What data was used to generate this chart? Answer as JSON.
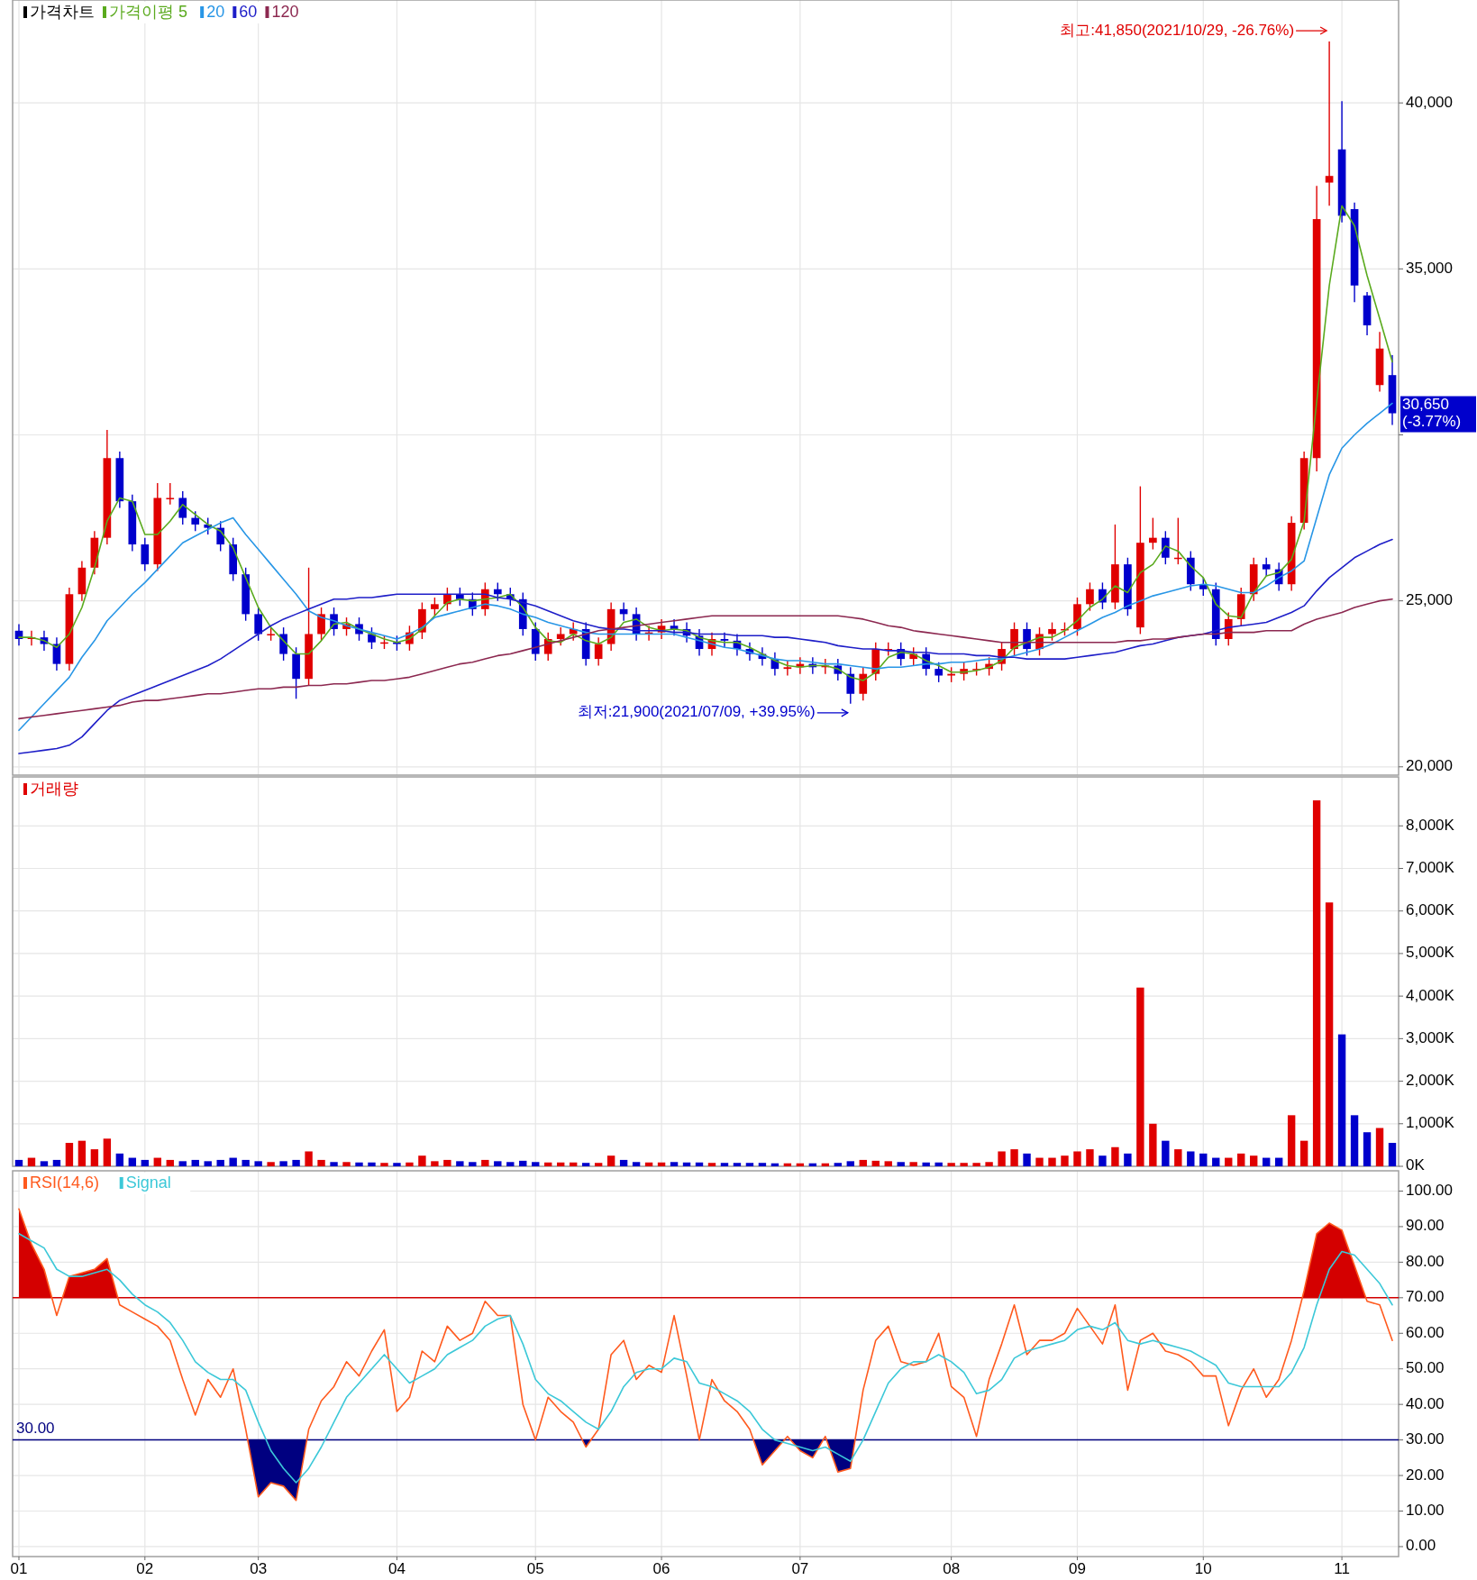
{
  "chart_data": [
    {
      "type": "candlestick",
      "title": "가격차트",
      "categories": [
        "01",
        null,
        null,
        null,
        null,
        null,
        null,
        null,
        null,
        null,
        "02",
        null,
        null,
        null,
        null,
        null,
        null,
        null,
        null,
        "03",
        null,
        null,
        null,
        null,
        null,
        null,
        null,
        null,
        null,
        null,
        "04",
        null,
        null,
        null,
        null,
        null,
        null,
        null,
        null,
        null,
        null,
        "05",
        null,
        null,
        null,
        null,
        null,
        null,
        null,
        null,
        null,
        "06",
        null,
        null,
        null,
        null,
        null,
        null,
        null,
        null,
        null,
        null,
        "07",
        null,
        null,
        null,
        null,
        null,
        null,
        null,
        null,
        null,
        null,
        null,
        "08",
        null,
        null,
        null,
        null,
        null,
        null,
        null,
        null,
        null,
        "09",
        null,
        null,
        null,
        null,
        null,
        null,
        null,
        null,
        null,
        "10",
        null,
        null,
        null,
        null,
        null,
        null,
        null,
        null,
        null,
        null,
        "11",
        null,
        null,
        null,
        null
      ],
      "ohlc": [
        [
          24100,
          24300,
          23650,
          23850
        ],
        [
          23850,
          24100,
          23650,
          23900
        ],
        [
          23900,
          24100,
          23500,
          23700
        ],
        [
          23700,
          23900,
          22900,
          23100
        ],
        [
          23100,
          25400,
          22900,
          25200
        ],
        [
          25200,
          26200,
          25000,
          26000
        ],
        [
          26000,
          27100,
          25800,
          26900
        ],
        [
          26900,
          30150,
          26700,
          29300
        ],
        [
          29300,
          29500,
          27800,
          28000
        ],
        [
          28000,
          28200,
          26500,
          26700
        ],
        [
          26700,
          26900,
          25900,
          26100
        ],
        [
          26100,
          28550,
          25900,
          28100
        ],
        [
          28100,
          28550,
          27900,
          28100
        ],
        [
          28100,
          28300,
          27300,
          27500
        ],
        [
          27500,
          27700,
          27100,
          27300
        ],
        [
          27300,
          27500,
          27000,
          27200
        ],
        [
          27200,
          27400,
          26500,
          26700
        ],
        [
          26700,
          26900,
          25600,
          25800
        ],
        [
          25800,
          26000,
          24400,
          24600
        ],
        [
          24600,
          24800,
          23800,
          24000
        ],
        [
          24000,
          24200,
          23800,
          24000
        ],
        [
          24000,
          24200,
          23200,
          23400
        ],
        [
          23400,
          23600,
          22050,
          22650
        ],
        [
          22650,
          26000,
          22450,
          24000
        ],
        [
          24000,
          24800,
          23800,
          24600
        ],
        [
          24600,
          24800,
          23950,
          24150
        ],
        [
          24150,
          24500,
          23950,
          24300
        ],
        [
          24300,
          24500,
          23800,
          24000
        ],
        [
          24000,
          24200,
          23550,
          23750
        ],
        [
          23750,
          23950,
          23550,
          23750
        ],
        [
          23750,
          23950,
          23500,
          23700
        ],
        [
          23700,
          24250,
          23500,
          24050
        ],
        [
          24050,
          24950,
          23850,
          24750
        ],
        [
          24750,
          25100,
          24550,
          24900
        ],
        [
          24900,
          25400,
          24700,
          25200
        ],
        [
          25200,
          25400,
          24850,
          25050
        ],
        [
          25050,
          25250,
          24550,
          24750
        ],
        [
          24750,
          25550,
          24550,
          25350
        ],
        [
          25350,
          25550,
          25000,
          25200
        ],
        [
          25200,
          25400,
          24850,
          25050
        ],
        [
          25050,
          25250,
          23950,
          24150
        ],
        [
          24150,
          24350,
          23200,
          23400
        ],
        [
          23400,
          24050,
          23200,
          23850
        ],
        [
          23850,
          24200,
          23650,
          24000
        ],
        [
          24000,
          24350,
          23800,
          24150
        ],
        [
          24150,
          24350,
          23050,
          23250
        ],
        [
          23250,
          23900,
          23050,
          23700
        ],
        [
          23700,
          24950,
          23500,
          24750
        ],
        [
          24750,
          24950,
          24400,
          24600
        ],
        [
          24600,
          24800,
          23800,
          24000
        ],
        [
          24000,
          24250,
          23800,
          24050
        ],
        [
          24050,
          24450,
          23850,
          24250
        ],
        [
          24250,
          24450,
          23950,
          24150
        ],
        [
          24150,
          24350,
          23750,
          23950
        ],
        [
          23950,
          24150,
          23350,
          23550
        ],
        [
          23550,
          24050,
          23350,
          23850
        ],
        [
          23850,
          24050,
          23600,
          23800
        ],
        [
          23800,
          24000,
          23350,
          23550
        ],
        [
          23550,
          23750,
          23200,
          23400
        ],
        [
          23400,
          23600,
          23050,
          23250
        ],
        [
          23250,
          23450,
          22750,
          22950
        ],
        [
          22950,
          23200,
          22750,
          23000
        ],
        [
          23000,
          23300,
          22800,
          23100
        ],
        [
          23100,
          23300,
          22800,
          23000
        ],
        [
          23000,
          23250,
          22800,
          23050
        ],
        [
          23050,
          23250,
          22600,
          22800
        ],
        [
          22800,
          23000,
          21900,
          22200
        ],
        [
          22200,
          23000,
          22000,
          22800
        ],
        [
          22800,
          23750,
          22600,
          23550
        ],
        [
          23550,
          23750,
          23350,
          23550
        ],
        [
          23550,
          23750,
          23050,
          23250
        ],
        [
          23250,
          23600,
          23050,
          23400
        ],
        [
          23400,
          23600,
          22750,
          22950
        ],
        [
          22950,
          23150,
          22550,
          22750
        ],
        [
          22750,
          23000,
          22550,
          22800
        ],
        [
          22800,
          23150,
          22600,
          22950
        ],
        [
          22950,
          23150,
          22750,
          22950
        ],
        [
          22950,
          23300,
          22750,
          23100
        ],
        [
          23100,
          23750,
          22900,
          23550
        ],
        [
          23550,
          24350,
          23350,
          24150
        ],
        [
          24150,
          24350,
          23350,
          23550
        ],
        [
          23550,
          24200,
          23350,
          24000
        ],
        [
          24000,
          24350,
          23800,
          24150
        ],
        [
          24150,
          24350,
          23950,
          24150
        ],
        [
          24150,
          25100,
          23950,
          24900
        ],
        [
          24900,
          25550,
          24700,
          25350
        ],
        [
          25350,
          25550,
          24750,
          24950
        ],
        [
          24950,
          27300,
          24750,
          26100
        ],
        [
          26100,
          26300,
          24550,
          24750
        ],
        [
          24200,
          28450,
          24000,
          26750
        ],
        [
          26750,
          27500,
          26550,
          26900
        ],
        [
          26900,
          27100,
          26100,
          26300
        ],
        [
          26300,
          27500,
          26100,
          26300
        ],
        [
          26300,
          26500,
          25300,
          25500
        ],
        [
          25500,
          25700,
          25150,
          25350
        ],
        [
          25350,
          25550,
          23650,
          23850
        ],
        [
          23850,
          24650,
          23650,
          24450
        ],
        [
          24450,
          25400,
          24250,
          25200
        ],
        [
          25200,
          26300,
          25000,
          26100
        ],
        [
          26100,
          26300,
          25750,
          25950
        ],
        [
          25950,
          26150,
          25300,
          25500
        ],
        [
          25500,
          27550,
          25300,
          27350
        ],
        [
          27350,
          29500,
          27150,
          29300
        ],
        [
          29300,
          37500,
          28900,
          36500
        ],
        [
          37600,
          41850,
          36900,
          37800
        ],
        [
          38600,
          40050,
          36400,
          36600
        ],
        [
          36800,
          37000,
          34000,
          34500
        ],
        [
          34200,
          34300,
          33000,
          33300
        ],
        [
          31500,
          33100,
          31300,
          32600
        ],
        [
          31800,
          32400,
          30300,
          30650
        ]
      ],
      "series": [
        {
          "name": "가격이평 5",
          "type": "line",
          "color": "#5aaa1e",
          "values": [
            23900,
            23900,
            23800,
            23600,
            24000,
            24800,
            26000,
            27400,
            28100,
            28000,
            27000,
            27000,
            27400,
            27900,
            27600,
            27300,
            27100,
            26600,
            25700,
            24800,
            24200,
            23800,
            23400,
            23400,
            23800,
            24300,
            24350,
            24150,
            24000,
            23850,
            23750,
            23850,
            24150,
            24550,
            24950,
            25050,
            25000,
            25050,
            25100,
            25200,
            24800,
            24200,
            23800,
            23750,
            24000,
            23800,
            23700,
            23900,
            24350,
            24450,
            24200,
            24100,
            24150,
            24100,
            23900,
            23800,
            23750,
            23750,
            23600,
            23400,
            23200,
            23050,
            23000,
            23050,
            23050,
            22950,
            22700,
            22600,
            22850,
            23300,
            23450,
            23400,
            23200,
            23050,
            22850,
            22850,
            22900,
            23000,
            23200,
            23600,
            23750,
            23900,
            23900,
            24100,
            24400,
            24800,
            25050,
            25450,
            25250,
            25850,
            26100,
            26650,
            26500,
            26050,
            25700,
            24900,
            24550,
            24500,
            25250,
            25750,
            25850,
            26250,
            27400,
            31000,
            34500,
            36900,
            36300,
            34800,
            33500,
            32200
          ]
        },
        {
          "name": "20",
          "type": "line",
          "color": "#2896e6",
          "values": [
            21100,
            21500,
            21900,
            22300,
            22700,
            23300,
            23800,
            24400,
            24800,
            25200,
            25550,
            25950,
            26350,
            26750,
            26950,
            27150,
            27350,
            27500,
            27000,
            26550,
            26100,
            25650,
            25200,
            24700,
            24500,
            24400,
            24250,
            24150,
            24050,
            23950,
            23850,
            24000,
            24200,
            24500,
            24600,
            24700,
            24800,
            24900,
            24850,
            24750,
            24600,
            24500,
            24350,
            24250,
            24150,
            24050,
            24000,
            24000,
            24000,
            24000,
            24000,
            24000,
            24000,
            23900,
            23800,
            23700,
            23600,
            23550,
            23450,
            23350,
            23250,
            23200,
            23200,
            23150,
            23100,
            23100,
            23050,
            23000,
            22950,
            23000,
            23000,
            23050,
            23100,
            23100,
            23150,
            23150,
            23200,
            23250,
            23250,
            23350,
            23450,
            23550,
            23700,
            23900,
            24100,
            24300,
            24500,
            24650,
            24850,
            25000,
            25150,
            25250,
            25350,
            25450,
            25500,
            25450,
            25350,
            25250,
            25250,
            25450,
            25700,
            25900,
            26200,
            27500,
            28800,
            29600,
            30000,
            30350,
            30650,
            30950
          ]
        },
        {
          "name": "60",
          "type": "line",
          "color": "#1e1ec8",
          "values": [
            20400,
            20450,
            20500,
            20550,
            20650,
            20900,
            21300,
            21700,
            22000,
            22150,
            22300,
            22450,
            22600,
            22750,
            22900,
            23050,
            23250,
            23500,
            23750,
            24000,
            24250,
            24450,
            24600,
            24750,
            24900,
            25050,
            25050,
            25100,
            25100,
            25150,
            25200,
            25200,
            25200,
            25200,
            25200,
            25200,
            25200,
            25200,
            25100,
            25050,
            24950,
            24850,
            24700,
            24550,
            24400,
            24300,
            24200,
            24150,
            24150,
            24100,
            24100,
            24100,
            24050,
            24050,
            24000,
            24000,
            24000,
            23950,
            23950,
            23950,
            23900,
            23900,
            23850,
            23800,
            23750,
            23650,
            23600,
            23550,
            23550,
            23500,
            23500,
            23450,
            23450,
            23400,
            23400,
            23400,
            23350,
            23350,
            23300,
            23300,
            23250,
            23250,
            23250,
            23250,
            23300,
            23350,
            23400,
            23450,
            23550,
            23650,
            23700,
            23800,
            23900,
            23950,
            24000,
            24100,
            24200,
            24250,
            24300,
            24350,
            24500,
            24650,
            24850,
            25300,
            25700,
            26000,
            26300,
            26500,
            26700,
            26850
          ]
        },
        {
          "name": "120",
          "type": "line",
          "color": "#8c2850",
          "values": [
            21450,
            21500,
            21550,
            21600,
            21650,
            21700,
            21750,
            21800,
            21850,
            21950,
            22000,
            22000,
            22050,
            22100,
            22150,
            22200,
            22200,
            22250,
            22300,
            22350,
            22350,
            22400,
            22400,
            22450,
            22450,
            22500,
            22500,
            22550,
            22600,
            22600,
            22650,
            22700,
            22800,
            22900,
            23000,
            23100,
            23150,
            23250,
            23350,
            23400,
            23500,
            23600,
            23700,
            23800,
            23900,
            24000,
            24100,
            24150,
            24200,
            24250,
            24300,
            24350,
            24400,
            24450,
            24500,
            24550,
            24550,
            24550,
            24550,
            24550,
            24550,
            24550,
            24550,
            24550,
            24550,
            24550,
            24500,
            24450,
            24350,
            24250,
            24200,
            24100,
            24050,
            24000,
            23950,
            23900,
            23850,
            23800,
            23750,
            23750,
            23750,
            23750,
            23750,
            23750,
            23750,
            23750,
            23750,
            23750,
            23800,
            23800,
            23850,
            23850,
            23900,
            23950,
            24000,
            24000,
            24050,
            24050,
            24050,
            24100,
            24100,
            24100,
            24300,
            24450,
            24550,
            24650,
            24800,
            24900,
            25000,
            25050
          ]
        }
      ],
      "ylim": [
        19750,
        43100
      ],
      "yticks": [
        {
          "value": 20000,
          "label": "20,000"
        },
        {
          "value": 25000,
          "label": "25,000"
        },
        {
          "value": 30000,
          "label": null
        },
        {
          "value": 35000,
          "label": "35,000"
        },
        {
          "value": 40000,
          "label": "40,000"
        }
      ],
      "grid": true,
      "legend": "top left",
      "tick_labels": "y",
      "annotations": [
        "최고:41,850(2021/10/29, -26.76%)",
        "최저:21,900(2021/07/09, +39.95%)",
        "30,650 (-3.77%)"
      ]
    },
    {
      "type": "bar",
      "categories": [
        "01",
        null,
        null,
        null,
        null,
        null,
        null,
        null,
        null,
        null,
        "02",
        null,
        null,
        null,
        null,
        null,
        null,
        null,
        null,
        "03",
        null,
        null,
        null,
        null,
        null,
        null,
        null,
        null,
        null,
        null,
        "04",
        null,
        null,
        null,
        null,
        null,
        null,
        null,
        null,
        null,
        null,
        "05",
        null,
        null,
        null,
        null,
        null,
        null,
        null,
        null,
        null,
        "06",
        null,
        null,
        null,
        null,
        null,
        null,
        null,
        null,
        null,
        null,
        "07",
        null,
        null,
        null,
        null,
        null,
        null,
        null,
        null,
        null,
        null,
        null,
        "08",
        null,
        null,
        null,
        null,
        null,
        null,
        null,
        null,
        null,
        "09",
        null,
        null,
        null,
        null,
        null,
        null,
        null,
        null,
        null,
        "10",
        null,
        null,
        null,
        null,
        null,
        null,
        null,
        null,
        null,
        null,
        "11",
        null,
        null,
        null,
        null
      ],
      "series": [
        {
          "name": "거래량",
          "color": "#e00000",
          "values": [
            null,
            200,
            null,
            null,
            550,
            600,
            400,
            650,
            null,
            null,
            null,
            200,
            150,
            null,
            null,
            null,
            null,
            null,
            null,
            null,
            100,
            null,
            null,
            350,
            150,
            null,
            100,
            null,
            null,
            80,
            null,
            90,
            250,
            120,
            150,
            null,
            null,
            150,
            null,
            null,
            null,
            null,
            90,
            90,
            90,
            null,
            80,
            250,
            null,
            null,
            90,
            90,
            null,
            null,
            null,
            80,
            null,
            null,
            null,
            null,
            null,
            70,
            70,
            null,
            70,
            null,
            null,
            150,
            130,
            120,
            null,
            100,
            null,
            null,
            80,
            80,
            80,
            100,
            350,
            400,
            null,
            200,
            200,
            250,
            350,
            400,
            null,
            450,
            null,
            4200,
            1000,
            null,
            400,
            null,
            null,
            null,
            200,
            300,
            250,
            null,
            null,
            1200,
            600,
            8600,
            6200,
            null,
            null,
            null,
            900,
            null
          ]
        },
        {
          "color": "#0000cc",
          "values": [
            150,
            null,
            120,
            150,
            null,
            null,
            null,
            null,
            300,
            200,
            150,
            null,
            null,
            120,
            150,
            120,
            150,
            200,
            150,
            120,
            null,
            120,
            150,
            null,
            null,
            100,
            null,
            90,
            90,
            null,
            80,
            null,
            null,
            null,
            null,
            120,
            100,
            null,
            120,
            100,
            130,
            100,
            null,
            null,
            null,
            80,
            null,
            null,
            150,
            100,
            null,
            null,
            100,
            90,
            90,
            null,
            80,
            80,
            80,
            80,
            70,
            null,
            null,
            70,
            null,
            80,
            120,
            null,
            null,
            null,
            100,
            null,
            90,
            90,
            null,
            null,
            null,
            null,
            null,
            null,
            300,
            null,
            null,
            null,
            null,
            null,
            250,
            null,
            300,
            null,
            null,
            600,
            null,
            350,
            300,
            200,
            null,
            null,
            null,
            200,
            200,
            null,
            null,
            null,
            null,
            3100,
            1200,
            800,
            null,
            550
          ]
        }
      ],
      "ylim": [
        0,
        9150
      ],
      "yticks": [
        {
          "value": 0,
          "label": "0K"
        },
        {
          "value": 1000,
          "label": "1,000K"
        },
        {
          "value": 2000,
          "label": "2,000K"
        },
        {
          "value": 3000,
          "label": "3,000K"
        },
        {
          "value": 4000,
          "label": "4,000K"
        },
        {
          "value": 5000,
          "label": "5,000K"
        },
        {
          "value": 6000,
          "label": "6,000K"
        },
        {
          "value": 7000,
          "label": "7,000K"
        },
        {
          "value": 8000,
          "label": "8,000K"
        }
      ],
      "grid": true,
      "legend": "top left",
      "tick_labels": "y"
    },
    {
      "type": "line",
      "categories": [
        "01",
        null,
        null,
        null,
        null,
        null,
        null,
        null,
        null,
        null,
        "02",
        null,
        null,
        null,
        null,
        null,
        null,
        null,
        null,
        "03",
        null,
        null,
        null,
        null,
        null,
        null,
        null,
        null,
        null,
        null,
        "04",
        null,
        null,
        null,
        null,
        null,
        null,
        null,
        null,
        null,
        null,
        "05",
        null,
        null,
        null,
        null,
        null,
        null,
        null,
        null,
        null,
        "06",
        null,
        null,
        null,
        null,
        null,
        null,
        null,
        null,
        null,
        null,
        "07",
        null,
        null,
        null,
        null,
        null,
        null,
        null,
        null,
        null,
        null,
        null,
        "08",
        null,
        null,
        null,
        null,
        null,
        null,
        null,
        null,
        null,
        "09",
        null,
        null,
        null,
        null,
        null,
        null,
        null,
        null,
        null,
        "10",
        null,
        null,
        null,
        null,
        null,
        null,
        null,
        null,
        null,
        null,
        "11",
        null,
        null,
        null,
        null
      ],
      "series": [
        {
          "name": "RSI(14,6)",
          "color": "#ff5a1e",
          "values": [
            95,
            85,
            78,
            65,
            76,
            77,
            78,
            81,
            68,
            66,
            64,
            62,
            58,
            47,
            37,
            47,
            42,
            50,
            33,
            14,
            18,
            17,
            13,
            33,
            41,
            45,
            52,
            48,
            55,
            61,
            38,
            42,
            55,
            52,
            62,
            58,
            60,
            69,
            65,
            65,
            40,
            30,
            42,
            38,
            35,
            28,
            33,
            54,
            58,
            47,
            51,
            49,
            65,
            48,
            30,
            47,
            41,
            38,
            33,
            23,
            27,
            31,
            27,
            25,
            31,
            21,
            22,
            44,
            58,
            62,
            52,
            51,
            52,
            60,
            45,
            42,
            31,
            47,
            57,
            68,
            54,
            58,
            58,
            60,
            67,
            62,
            57,
            68,
            44,
            58,
            60,
            55,
            54,
            52,
            48,
            48,
            34,
            44,
            50,
            42,
            47,
            58,
            72,
            88,
            91,
            89,
            79,
            69,
            68,
            58
          ]
        },
        {
          "name": "Signal",
          "color": "#3cc8d8",
          "values": [
            88,
            86,
            84,
            78,
            76,
            76,
            77,
            78,
            75,
            71,
            68,
            66,
            63,
            58,
            52,
            49,
            47,
            47,
            44,
            35,
            27,
            22,
            18,
            22,
            28,
            35,
            42,
            46,
            50,
            54,
            50,
            46,
            48,
            50,
            54,
            56,
            58,
            62,
            64,
            65,
            57,
            47,
            43,
            41,
            38,
            35,
            33,
            38,
            45,
            49,
            50,
            50,
            53,
            52,
            46,
            45,
            43,
            41,
            38,
            33,
            30,
            29,
            28,
            27,
            28,
            26,
            24,
            30,
            38,
            46,
            50,
            52,
            52,
            54,
            52,
            49,
            43,
            44,
            47,
            53,
            55,
            56,
            57,
            58,
            61,
            62,
            61,
            63,
            58,
            57,
            58,
            57,
            56,
            55,
            53,
            51,
            46,
            45,
            45,
            45,
            45,
            49,
            56,
            68,
            78,
            83,
            82,
            78,
            74,
            68
          ]
        }
      ],
      "ylim": [
        -2.8,
        105.7
      ],
      "yticks": [
        {
          "value": 0,
          "label": "0.00"
        },
        {
          "value": 10,
          "label": "10.00"
        },
        {
          "value": 20,
          "label": "20.00"
        },
        {
          "value": 30,
          "label": "30.00"
        },
        {
          "value": 40,
          "label": "40.00"
        },
        {
          "value": 50,
          "label": "50.00"
        },
        {
          "value": 60,
          "label": "60.00"
        },
        {
          "value": 70,
          "label": "70.00"
        },
        {
          "value": 80,
          "label": "80.00"
        },
        {
          "value": 90,
          "label": "90.00"
        },
        {
          "value": 100,
          "label": "100.00"
        }
      ],
      "ref_lines": [
        {
          "axis": "y",
          "value": 70,
          "color": "#d40000"
        },
        {
          "axis": "y",
          "value": 30,
          "color": "#000080",
          "label": "30.00"
        }
      ],
      "grid": true,
      "legend": "top left"
    }
  ]
}
